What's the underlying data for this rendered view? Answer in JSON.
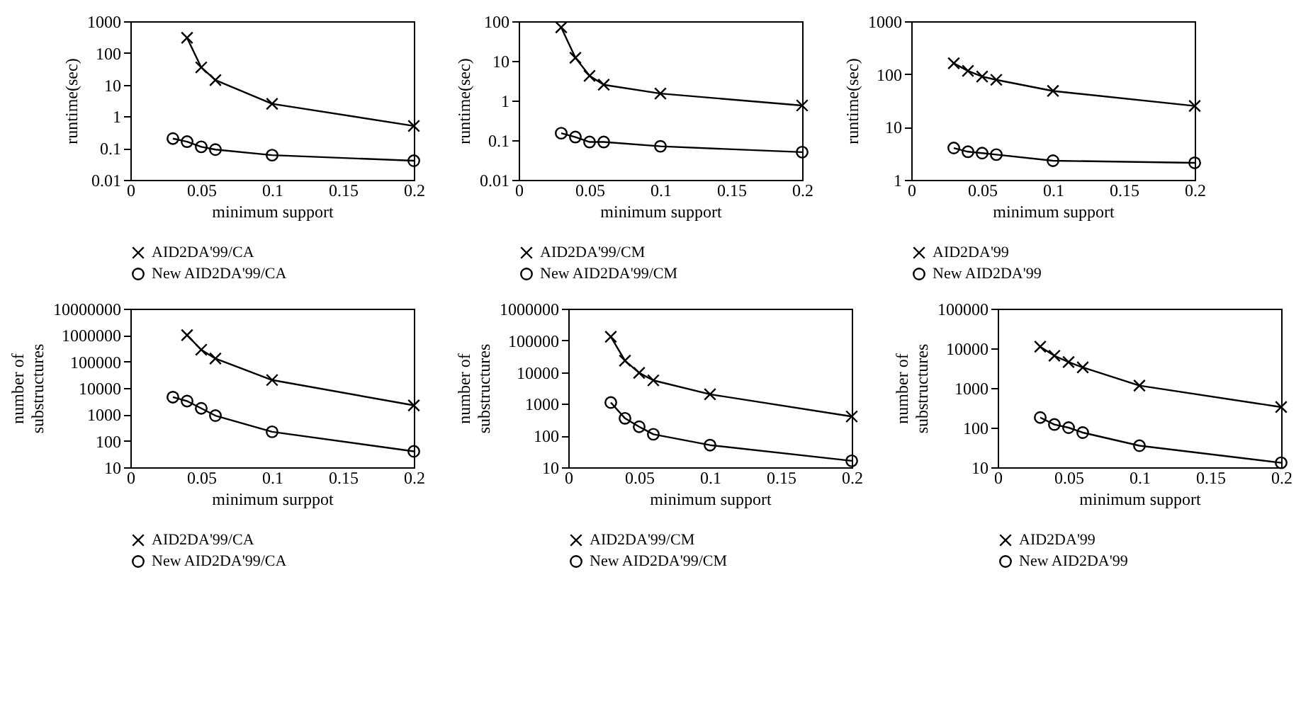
{
  "chart_data": [
    {
      "type": "line",
      "xlabel": "minimum support",
      "ylabel": "runtime(sec)",
      "log": "y",
      "xlim": [
        0,
        0.2
      ],
      "xticks": [
        0,
        0.05,
        0.1,
        0.15,
        0.2
      ],
      "ylim": [
        0.01,
        1000
      ],
      "yticks": [
        0.01,
        0.1,
        1,
        10,
        100,
        1000
      ],
      "legend": "bottom",
      "grid": false,
      "series": [
        {
          "name": "AID2DA'99/CA",
          "color": "#000000",
          "marker": "cross",
          "x": [
            0.04,
            0.05,
            0.06,
            0.1,
            0.2
          ],
          "values": [
            300,
            35,
            14,
            2.5,
            0.5
          ]
        },
        {
          "name": "New AID2DA'99/CA",
          "color": "#000000",
          "marker": "circle",
          "x": [
            0.03,
            0.04,
            0.05,
            0.06,
            0.1,
            0.2
          ],
          "values": [
            0.2,
            0.16,
            0.11,
            0.09,
            0.06,
            0.04
          ]
        }
      ]
    },
    {
      "type": "line",
      "xlabel": "minimum support",
      "ylabel": "runtime(sec)",
      "log": "y",
      "xlim": [
        0,
        0.2
      ],
      "xticks": [
        0,
        0.05,
        0.1,
        0.15,
        0.2
      ],
      "ylim": [
        0.01,
        100
      ],
      "yticks": [
        0.01,
        0.1,
        1,
        10,
        100
      ],
      "legend": "bottom",
      "grid": false,
      "series": [
        {
          "name": "AID2DA'99/CM",
          "color": "#000000",
          "marker": "cross",
          "x": [
            0.03,
            0.04,
            0.05,
            0.06,
            0.1,
            0.2
          ],
          "values": [
            70,
            12,
            4.2,
            2.5,
            1.5,
            0.75
          ]
        },
        {
          "name": "New AID2DA'99/CM",
          "color": "#000000",
          "marker": "circle",
          "x": [
            0.03,
            0.04,
            0.05,
            0.06,
            0.1,
            0.2
          ],
          "values": [
            0.15,
            0.12,
            0.09,
            0.09,
            0.07,
            0.05
          ]
        }
      ]
    },
    {
      "type": "line",
      "xlabel": "minimum support",
      "ylabel": "runtime(sec)",
      "log": "y",
      "xlim": [
        0,
        0.2
      ],
      "xticks": [
        0,
        0.05,
        0.1,
        0.15,
        0.2
      ],
      "ylim": [
        1,
        1000
      ],
      "yticks": [
        1,
        10,
        100,
        1000
      ],
      "legend": "bottom",
      "grid": false,
      "series": [
        {
          "name": "AID2DA'99",
          "color": "#000000",
          "marker": "cross",
          "x": [
            0.03,
            0.04,
            0.05,
            0.06,
            0.1,
            0.2
          ],
          "values": [
            160,
            115,
            90,
            78,
            48,
            25
          ]
        },
        {
          "name": "New AID2DA'99",
          "color": "#000000",
          "marker": "circle",
          "x": [
            0.03,
            0.04,
            0.05,
            0.06,
            0.1,
            0.2
          ],
          "values": [
            4,
            3.4,
            3.2,
            3,
            2.3,
            2.1
          ]
        }
      ]
    },
    {
      "type": "line",
      "xlabel": "minimum surppot",
      "ylabel": "number of substructures",
      "log": "y",
      "xlim": [
        0,
        0.2
      ],
      "xticks": [
        0,
        0.05,
        0.1,
        0.15,
        0.2
      ],
      "ylim": [
        10,
        10000000
      ],
      "yticks": [
        10,
        100,
        1000,
        10000,
        100000,
        1000000,
        10000000
      ],
      "legend": "bottom",
      "grid": false,
      "series": [
        {
          "name": "AID2DA'99/CA",
          "color": "#000000",
          "marker": "cross",
          "x": [
            0.04,
            0.05,
            0.06,
            0.1,
            0.2
          ],
          "values": [
            1000000,
            280000,
            130000,
            20000,
            2200
          ]
        },
        {
          "name": "New AID2DA'99/CA",
          "color": "#000000",
          "marker": "circle",
          "x": [
            0.03,
            0.04,
            0.05,
            0.06,
            0.1,
            0.2
          ],
          "values": [
            4500,
            3200,
            1700,
            900,
            220,
            40
          ]
        }
      ]
    },
    {
      "type": "line",
      "xlabel": "minimum support",
      "ylabel": "number of substructures",
      "log": "y",
      "xlim": [
        0,
        0.2
      ],
      "xticks": [
        0,
        0.05,
        0.1,
        0.15,
        0.2
      ],
      "ylim": [
        10,
        1000000
      ],
      "yticks": [
        10,
        100,
        1000,
        10000,
        100000,
        1000000
      ],
      "legend": "bottom",
      "grid": false,
      "series": [
        {
          "name": "AID2DA'99/CM",
          "color": "#000000",
          "marker": "cross",
          "x": [
            0.03,
            0.04,
            0.05,
            0.06,
            0.1,
            0.2
          ],
          "values": [
            130000,
            23000,
            9500,
            5500,
            2000,
            400
          ]
        },
        {
          "name": "New AID2DA'99/CM",
          "color": "#000000",
          "marker": "circle",
          "x": [
            0.03,
            0.04,
            0.05,
            0.06,
            0.1,
            0.2
          ],
          "values": [
            1100,
            350,
            190,
            110,
            50,
            16
          ]
        }
      ]
    },
    {
      "type": "line",
      "xlabel": "minimum support",
      "ylabel": "number of substructures",
      "log": "y",
      "xlim": [
        0,
        0.2
      ],
      "xticks": [
        0,
        0.05,
        0.1,
        0.15,
        0.2
      ],
      "ylim": [
        10,
        100000
      ],
      "yticks": [
        10,
        100,
        1000,
        10000,
        100000
      ],
      "legend": "bottom",
      "grid": false,
      "series": [
        {
          "name": "AID2DA'99",
          "color": "#000000",
          "marker": "cross",
          "x": [
            0.03,
            0.04,
            0.05,
            0.06,
            0.1,
            0.2
          ],
          "values": [
            11000,
            6500,
            4500,
            3300,
            1150,
            330
          ]
        },
        {
          "name": "New AID2DA'99",
          "color": "#000000",
          "marker": "circle",
          "x": [
            0.03,
            0.04,
            0.05,
            0.06,
            0.1,
            0.2
          ],
          "values": [
            180,
            120,
            100,
            75,
            35,
            13
          ]
        }
      ]
    }
  ]
}
